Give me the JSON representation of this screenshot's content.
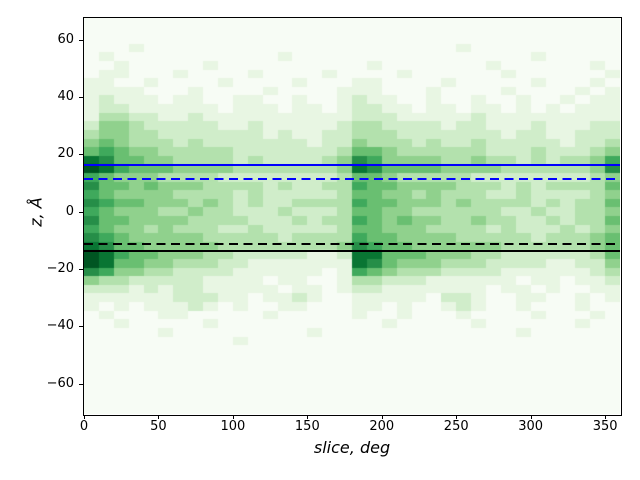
{
  "chart_data": {
    "type": "heatmap",
    "title": "",
    "xlabel": "slice, deg",
    "ylabel": "z, Å",
    "xlim": [
      0,
      360
    ],
    "ylim": [
      -70.5,
      67.5
    ],
    "x_ticks": [
      0,
      50,
      100,
      150,
      200,
      250,
      300,
      350
    ],
    "y_ticks": [
      60,
      40,
      20,
      0,
      -20,
      -40,
      -60
    ],
    "grid": false,
    "legend": "none",
    "colormap": "Greens",
    "colormap_stops": [
      "#f7fcf5",
      "#e5f5e0",
      "#c7e9c0",
      "#a1d99b",
      "#74c476",
      "#41ab5d",
      "#238b45",
      "#006d2c",
      "#00441b"
    ],
    "x_bin_width_deg": 10,
    "z_bin_width_angstrom": 3,
    "z_row_centers_top_to_bottom": [
      66,
      63,
      60,
      57,
      54,
      51,
      48,
      45,
      42,
      39,
      36,
      33,
      30,
      27,
      24,
      21,
      18,
      15,
      12,
      9,
      6,
      3,
      0,
      -3,
      -6,
      -9,
      -12,
      -15,
      -18,
      -21,
      -24,
      -27,
      -30,
      -33,
      -36,
      -39,
      -42,
      -45,
      -48,
      -51,
      -54,
      -57,
      -60,
      -63,
      -66,
      -69
    ],
    "intensity_scale": "each character is one cell, digits 0 (min, white) to 9 (max, dark green), estimated relative density; rows top (z=+66) to bottom (z=-69), 36 columns of 10 deg from 0 to 360",
    "matrix_rows_digits": [
      "000000000000000000000000000000000000",
      "000000000000000000000000000000000000",
      "000000000000000000000000000000000000",
      "000100000000000000000000010000000000",
      "010000000000010000000000000000100000",
      "001000001000000000010000000100000010",
      "011000100001000010000100000010000001",
      "110010000100001000110000100000100010",
      "111100010000100001110001000010000101",
      "121110110011001001211001001001001011",
      "122111111011101101221101101101010111",
      "133221121111111111222111112111111111",
      "244322222112111112332222122111211122",
      "344332222222121122333222222212211222",
      "454333232222222122433323223222221223",
      "565443333322222223554333333222322234",
      "875544333323222234764444334332323346",
      "986555444433333334875555444433333347",
      "654443333222222223554333332222222234",
      "755454443333232233655444433323233335",
      "654444333323222223554434333223222234",
      "765544434323223333655444343333232335",
      "654443343322232223554433333322322334",
      "755444433332223233654544334332232335",
      "654434333223222223554443333232223234",
      "765444443333323333655444433333233345",
      "875544444333333334765544444433333345",
      "986554443322222112885554443322222235",
      "985544333221111111875444333222211224",
      "764433222211111101654333222211111123",
      "433222221111011001332221111110110112",
      "222121221111101101221111111011010011",
      "111111222110112100111110221001100101",
      "101011121010011000110100121001000100",
      "010001100000100000100100010000100010",
      "001000001000000000001000001000000100",
      "000001000000000100000000000001000000",
      "000000000010000000000000000000000000",
      "000000000000000000000000000000000000",
      "000000000000000000000000000000000000",
      "000000000000000000000000000000000000",
      "000000000000000000000000000000000000",
      "000000000000000000000000000000000000",
      "000000000000000000000000000000000000",
      "000000000000000000000000000000000000",
      "000000000000000000000000000000000000"
    ],
    "hlines": [
      {
        "name": "blue-solid-line",
        "z": 16.1,
        "color": "#0000ff",
        "style": "solid"
      },
      {
        "name": "blue-dashed-line",
        "z": 11.4,
        "color": "#0000ff",
        "style": "dashed"
      },
      {
        "name": "black-dashed-line",
        "z": -11.4,
        "color": "#000000",
        "style": "dashed"
      },
      {
        "name": "black-solid-line",
        "z": -13.6,
        "color": "#000000",
        "style": "solid"
      }
    ]
  }
}
